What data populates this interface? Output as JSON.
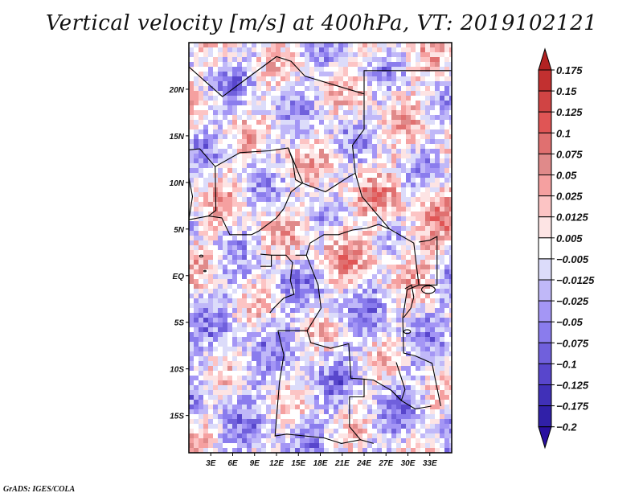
{
  "chart_data": {
    "type": "heatmap",
    "title": "Vertical velocity [m/s] at 400hPa, VT: 2019102121",
    "variable": "Vertical velocity",
    "units": "m/s",
    "level": "400hPa",
    "valid_time": "2019102121",
    "xlabel": "",
    "ylabel": "",
    "x_range": [
      0,
      36
    ],
    "y_range": [
      -19,
      25
    ],
    "x_ticks": [
      {
        "value": 3,
        "label": "3E"
      },
      {
        "value": 6,
        "label": "6E"
      },
      {
        "value": 9,
        "label": "9E"
      },
      {
        "value": 12,
        "label": "12E"
      },
      {
        "value": 15,
        "label": "15E"
      },
      {
        "value": 18,
        "label": "18E"
      },
      {
        "value": 21,
        "label": "21E"
      },
      {
        "value": 24,
        "label": "24E"
      },
      {
        "value": 27,
        "label": "27E"
      },
      {
        "value": 30,
        "label": "30E"
      },
      {
        "value": 33,
        "label": "33E"
      }
    ],
    "y_ticks": [
      {
        "value": 20,
        "label": "20N"
      },
      {
        "value": 15,
        "label": "15N"
      },
      {
        "value": 10,
        "label": "10N"
      },
      {
        "value": 5,
        "label": "5N"
      },
      {
        "value": 0,
        "label": "EQ"
      },
      {
        "value": -5,
        "label": "5S"
      },
      {
        "value": -10,
        "label": "10S"
      },
      {
        "value": -15,
        "label": "15S"
      }
    ],
    "grid": false,
    "legend": {
      "placement": "right",
      "type": "colorbar",
      "levels": [
        "0.175",
        "0.15",
        "0.125",
        "0.1",
        "0.075",
        "0.05",
        "0.025",
        "0.0125",
        "0.005",
        "-0.005",
        "-0.0125",
        "-0.025",
        "-0.05",
        "-0.075",
        "-0.1",
        "-0.125",
        "-0.175",
        "-0.2"
      ],
      "colors": [
        "#b22222",
        "#c23030",
        "#d04444",
        "#e05555",
        "#e07070",
        "#e08a8a",
        "#f5a0a0",
        "#fcc4c4",
        "#fde4e4",
        "#ffffff",
        "#dcdcfa",
        "#c0b8f8",
        "#a496f5",
        "#8a7ced",
        "#7060dc",
        "#5846cc",
        "#4030b8",
        "#3020a8",
        "#2a10a0"
      ]
    },
    "fields_description": "Noisy mottled pattern of red (ascent) and blue (descent) patches over West/Central Africa with country boundaries overlaid"
  },
  "footer": {
    "credit": "GrADS: IGES/COLA"
  }
}
